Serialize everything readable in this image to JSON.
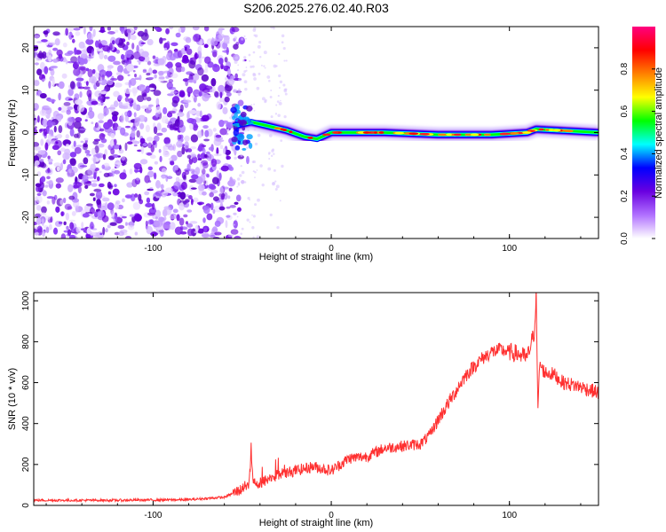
{
  "title": "S206.2025.276.02.40.R03",
  "chart_data": [
    {
      "type": "heatmap",
      "xlabel": "Height of straight line (km)",
      "ylabel": "Frequency (Hz)",
      "xlim": [
        -167,
        150
      ],
      "ylim": [
        -25,
        25
      ],
      "xticks": [
        -100,
        0,
        100
      ],
      "yticks": [
        -20,
        -10,
        0,
        10,
        20
      ],
      "colorbar": {
        "label": "Normalized spectral amplitude",
        "range": [
          0,
          1
        ],
        "ticks": [
          0.0,
          0.2,
          0.4,
          0.6,
          0.8
        ],
        "colors": [
          "#ffffff",
          "#b070ff",
          "#6a00e0",
          "#0000ff",
          "#00ffff",
          "#00ff00",
          "#ffff00",
          "#ff8000",
          "#ff0000",
          "#ff0080"
        ]
      },
      "noise_region": {
        "x_from": -167,
        "x_to": -55,
        "freq_from": -25,
        "freq_to": 25
      },
      "carrier_trace": [
        {
          "x": -55,
          "y": 1.5
        },
        {
          "x": -45,
          "y": 2.5
        },
        {
          "x": -35,
          "y": 1.5
        },
        {
          "x": -25,
          "y": 0.5
        },
        {
          "x": -15,
          "y": -1.0
        },
        {
          "x": -8,
          "y": -1.5
        },
        {
          "x": 0,
          "y": 0.0
        },
        {
          "x": 10,
          "y": 0.0
        },
        {
          "x": 30,
          "y": 0.0
        },
        {
          "x": 60,
          "y": -0.5
        },
        {
          "x": 90,
          "y": -0.5
        },
        {
          "x": 110,
          "y": 0.0
        },
        {
          "x": 115,
          "y": 0.8
        },
        {
          "x": 150,
          "y": 0.0
        }
      ]
    },
    {
      "type": "line",
      "xlabel": "Height of straight line (km)",
      "ylabel": "SNR (10 * v/v)",
      "xlim": [
        -167,
        150
      ],
      "ylim": [
        0,
        1040
      ],
      "xticks": [
        -100,
        0,
        100
      ],
      "yticks": [
        0,
        200,
        400,
        600,
        800,
        1000
      ],
      "color": "#ff3030",
      "series": [
        {
          "x": [
            -167,
            -120,
            -80,
            -60,
            -50,
            -46,
            -45,
            -44,
            -40,
            -30,
            -20,
            -10,
            0,
            10,
            20,
            30,
            40,
            50,
            55,
            60,
            65,
            70,
            75,
            80,
            85,
            90,
            95,
            100,
            105,
            110,
            114,
            115,
            116,
            117,
            118,
            120,
            125,
            130,
            140,
            150
          ],
          "y": [
            25,
            25,
            28,
            40,
            80,
            110,
            280,
            110,
            110,
            150,
            170,
            190,
            170,
            230,
            240,
            280,
            290,
            300,
            340,
            420,
            490,
            560,
            630,
            680,
            720,
            750,
            760,
            750,
            740,
            720,
            850,
            1040,
            450,
            700,
            670,
            650,
            640,
            600,
            580,
            550
          ]
        }
      ]
    }
  ]
}
